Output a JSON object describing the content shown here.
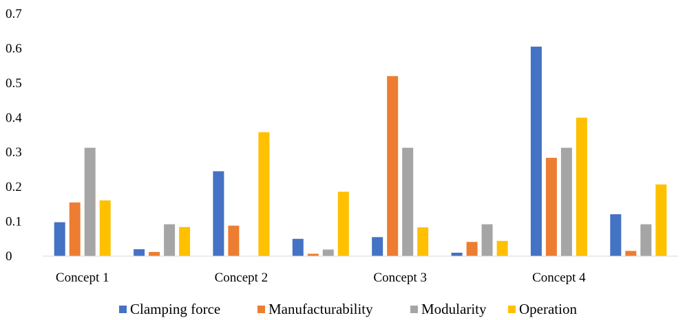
{
  "chart_data": {
    "type": "bar",
    "categories": [
      "Concept 1",
      "",
      "Concept 2",
      "",
      "Concept 3",
      "",
      "Concept 4",
      ""
    ],
    "series": [
      {
        "name": "Clamping force",
        "color": "#4472c4",
        "values": [
          0.098,
          0.02,
          0.245,
          0.05,
          0.055,
          0.01,
          0.605,
          0.121
        ]
      },
      {
        "name": "Manufacturability",
        "color": "#ed7d31",
        "values": [
          0.155,
          0.012,
          0.088,
          0.007,
          0.52,
          0.041,
          0.284,
          0.015
        ]
      },
      {
        "name": "Modularity",
        "color": "#a5a5a5",
        "values": [
          0.313,
          0.092,
          0.0,
          0.019,
          0.313,
          0.092,
          0.313,
          0.092
        ]
      },
      {
        "name": "Operation",
        "color": "#ffc000",
        "values": [
          0.161,
          0.084,
          0.358,
          0.186,
          0.083,
          0.044,
          0.4,
          0.207
        ]
      }
    ],
    "ylim": [
      0,
      0.7
    ],
    "yticks": [
      "0",
      "0.1",
      "0.2",
      "0.3",
      "0.4",
      "0.5",
      "0.6",
      "0.7"
    ],
    "legend_position": "bottom",
    "grid": false
  }
}
